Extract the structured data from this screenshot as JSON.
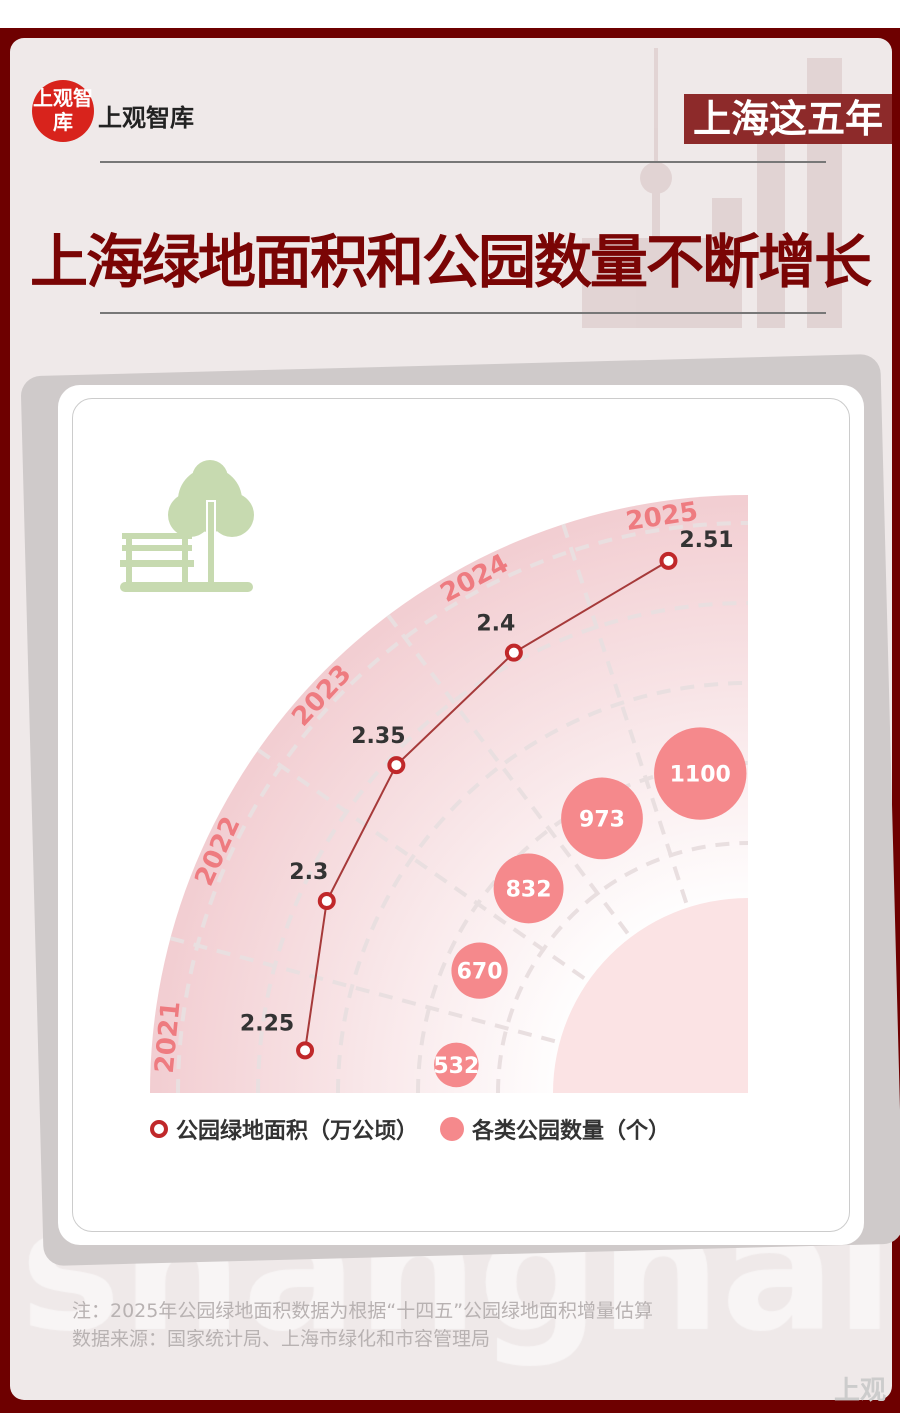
{
  "header": {
    "logo_mark": "上观智库",
    "logo_text": "上观智库",
    "tag": "上海这五年",
    "title": "上海绿地面积和公园数量不断增长"
  },
  "chart_data": {
    "type": "radial-line-bubble",
    "categories": [
      "2021",
      "2022",
      "2023",
      "2024",
      "2025"
    ],
    "series": [
      {
        "name": "公园绿地面积（万公顷）",
        "type": "line",
        "values": [
          2.25,
          2.3,
          2.35,
          2.4,
          2.51
        ],
        "color": "#c0282a"
      },
      {
        "name": "各类公园数量（个）",
        "type": "bubble",
        "values": [
          532,
          670,
          832,
          973,
          1100
        ],
        "color": "#f5898c"
      }
    ],
    "grid": true,
    "legend": "bottom",
    "icon": "park-bench-tree-icon"
  },
  "footer": {
    "note": "注：2025年公园绿地面积数据为根据“十四五”公园绿地面积增量估算",
    "source": "数据来源：国家统计局、上海市绿化和市容管理局",
    "watermark": "shanghai",
    "stamp": "上观"
  },
  "colors": {
    "frame": "#6e0000",
    "title": "#7a0505",
    "accent": "#c0282a",
    "bubble": "#f5898c"
  }
}
